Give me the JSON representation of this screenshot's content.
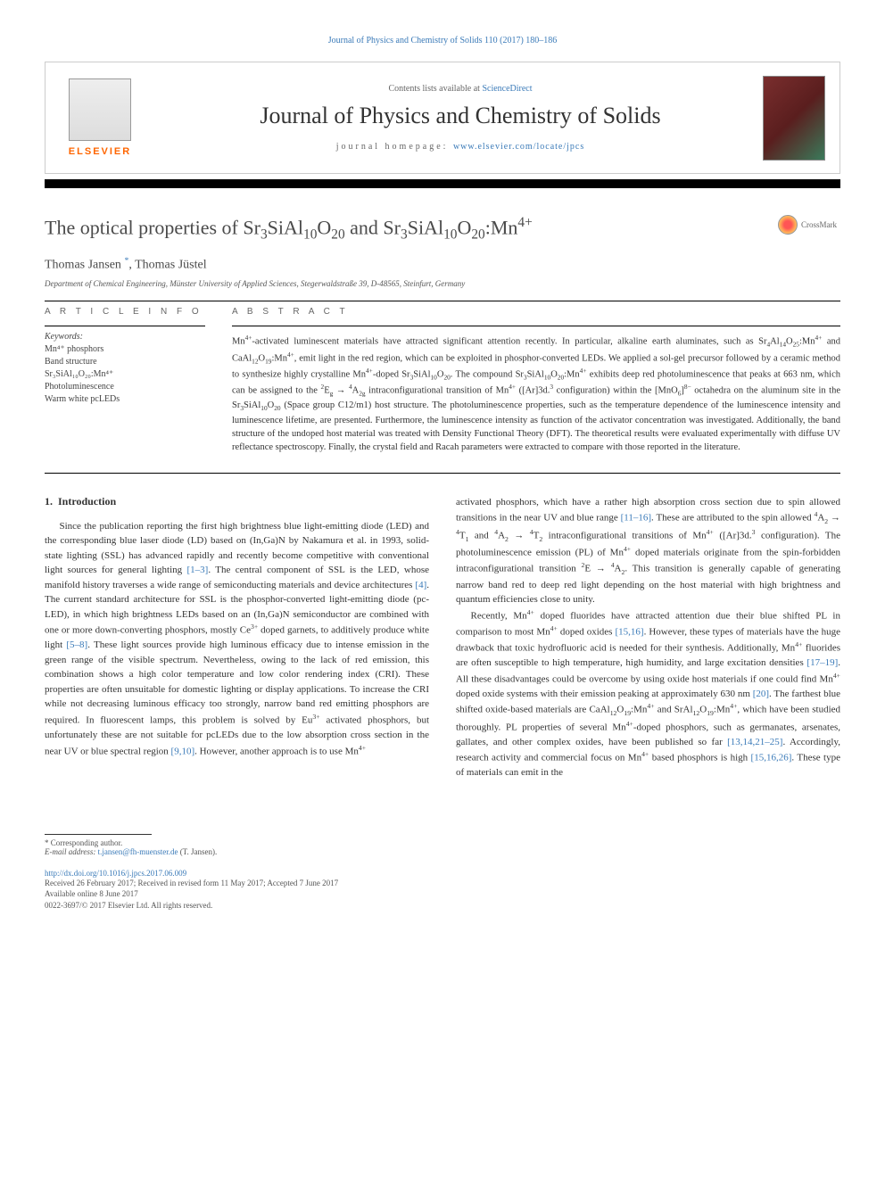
{
  "top_link": {
    "text": "Journal of Physics and Chemistry of Solids 110 (2017) 180–186",
    "color": "#3a7ab8"
  },
  "header": {
    "elsevier_label": "ELSEVIER",
    "elsevier_color": "#ff6600",
    "contents_prefix": "Contents lists available at ",
    "contents_link": "ScienceDirect",
    "journal_name": "Journal of Physics and Chemistry of Solids",
    "homepage_prefix": "journal homepage: ",
    "homepage_link": "www.elsevier.com/locate/jpcs"
  },
  "crossmark": {
    "label": "CrossMark"
  },
  "article": {
    "title_html": "The optical properties of Sr<sub>3</sub>SiAl<sub>10</sub>O<sub>20</sub> and Sr<sub>3</sub>SiAl<sub>10</sub>O<sub>20</sub>:Mn<sup>4+</sup>",
    "authors_html": "Thomas Jansen <sup class=\"corr-star\">*</sup>, Thomas Jüstel",
    "affiliation": "Department of Chemical Engineering, Münster University of Applied Sciences, Stegerwaldstraße 39, D-48565, Steinfurt, Germany"
  },
  "article_info": {
    "heading": "A R T I C L E  I N F O",
    "keywords_label": "Keywords:",
    "keywords": [
      "Mn⁴⁺ phosphors",
      "Band structure",
      "Sr₃SiAl₁₀O₂₀:Mn⁴⁺",
      "Photoluminescence",
      "Warm white pcLEDs"
    ]
  },
  "abstract": {
    "heading": "A B S T R A C T",
    "text_html": "Mn<sup>4+</sup>-activated luminescent materials have attracted significant attention recently. In particular, alkaline earth aluminates, such as Sr<sub>4</sub>Al<sub>14</sub>O<sub>25</sub>:Mn<sup>4+</sup> and CaAl<sub>12</sub>O<sub>19</sub>:Mn<sup>4+</sup>, emit light in the red region, which can be exploited in phosphor-converted LEDs. We applied a sol-gel precursor followed by a ceramic method to synthesize highly crystalline Mn<sup>4+</sup>-doped Sr<sub>3</sub>SiAl<sub>10</sub>O<sub>20</sub>. The compound Sr<sub>3</sub>SiAl<sub>10</sub>O<sub>20</sub>:Mn<sup>4+</sup> exhibits deep red photoluminescence that peaks at 663 nm, which can be assigned to the <sup>2</sup>E<sub>g</sub> → <sup>4</sup>A<sub>2g</sub> intraconfigurational transition of Mn<sup>4+</sup> ([Ar]3d.<sup>3</sup> configuration) within the [MnO<sub>6</sub>]<sup>8−</sup> octahedra on the aluminum site in the Sr<sub>3</sub>SiAl<sub>10</sub>O<sub>20</sub> (Space group C12/m1) host structure. The photoluminescence properties, such as the temperature dependence of the luminescence intensity and luminescence lifetime, are presented. Furthermore, the luminescence intensity as function of the activator concentration was investigated. Additionally, the band structure of the undoped host material was treated with Density Functional Theory (DFT). The theoretical results were evaluated experimentally with diffuse UV reflectance spectroscopy. Finally, the crystal field and Racah parameters were extracted to compare with those reported in the literature."
  },
  "body": {
    "section_number": "1.",
    "section_title": "Introduction",
    "col1_p1_html": "Since the publication reporting the first high brightness blue light-emitting diode (LED) and the corresponding blue laser diode (LD) based on (In,Ga)N by Nakamura et al. in 1993, solid-state lighting (SSL) has advanced rapidly and recently become competitive with conventional light sources for general lighting <span class=\"cite\">[1–3]</span>. The central component of SSL is the LED, whose manifold history traverses a wide range of semiconducting materials and device architectures <span class=\"cite\">[4]</span>. The current standard architecture for SSL is the phosphor-converted light-emitting diode (pc-LED), in which high brightness LEDs based on an (In,Ga)N semiconductor are combined with one or more down-converting phosphors, mostly Ce<sup>3+</sup> doped garnets, to additively produce white light <span class=\"cite\">[5–8]</span>. These light sources provide high luminous efficacy due to intense emission in the green range of the visible spectrum. Nevertheless, owing to the lack of red emission, this combination shows a high color temperature and low color rendering index (CRI). These properties are often unsuitable for domestic lighting or display applications. To increase the CRI while not decreasing luminous efficacy too strongly, narrow band red emitting phosphors are required. In fluorescent lamps, this problem is solved by Eu<sup>3+</sup> activated phosphors, but unfortunately these are not suitable for pcLEDs due to the low absorption cross section in the near UV or blue spectral region <span class=\"cite\">[9,10]</span>. However, another approach is to use Mn<sup>4+</sup>",
    "col2_p1_html": "activated phosphors, which have a rather high absorption cross section due to spin allowed transitions in the near UV and blue range <span class=\"cite\">[11–16]</span>. These are attributed to the spin allowed <sup>4</sup>A<sub>2</sub> → <sup>4</sup>T<sub>1</sub> and <sup>4</sup>A<sub>2</sub> → <sup>4</sup>T<sub>2</sub> intraconfigurational transitions of Mn<sup>4+</sup> ([Ar]3d.<sup>3</sup> configuration). The photoluminescence emission (PL) of Mn<sup>4+</sup> doped materials originate from the spin-forbidden intraconfigurational transition <sup>2</sup>E → <sup>4</sup>A<sub>2</sub>. This transition is generally capable of generating narrow band red to deep red light depending on the host material with high brightness and quantum efficiencies close to unity.",
    "col2_p2_html": "Recently, Mn<sup>4+</sup> doped fluorides have attracted attention due their blue shifted PL in comparison to most Mn<sup>4+</sup> doped oxides <span class=\"cite\">[15,16]</span>. However, these types of materials have the huge drawback that toxic hydrofluoric acid is needed for their synthesis. Additionally, Mn<sup>4+</sup> fluorides are often susceptible to high temperature, high humidity, and large excitation densities <span class=\"cite\">[17–19]</span>. All these disadvantages could be overcome by using oxide host materials if one could find Mn<sup>4+</sup> doped oxide systems with their emission peaking at approximately 630 nm <span class=\"cite\">[20]</span>. The farthest blue shifted oxide-based materials are CaAl<sub>12</sub>O<sub>19</sub>:Mn<sup>4+</sup> and SrAl<sub>12</sub>O<sub>19</sub>:Mn<sup>4+</sup>, which have been studied thoroughly. PL properties of several Mn<sup>4+</sup>-doped phosphors, such as germanates, arsenates, gallates, and other complex oxides, have been published so far <span class=\"cite\">[13,14,21–25]</span>. Accordingly, research activity and commercial focus on Mn<sup>4+</sup> based phosphors is high <span class=\"cite\">[15,16,26]</span>. These type of materials can emit in the"
  },
  "footnotes": {
    "corr": "* Corresponding author.",
    "email_label": "E-mail address: ",
    "email": "t.jansen@fh-muenster.de",
    "email_suffix": " (T. Jansen).",
    "doi": "http://dx.doi.org/10.1016/j.jpcs.2017.06.009",
    "received": "Received 26 February 2017; Received in revised form 11 May 2017; Accepted 7 June 2017",
    "available": "Available online 8 June 2017",
    "copyright": "0022-3697/© 2017 Elsevier Ltd. All rights reserved."
  },
  "colors": {
    "link": "#3a7ab8",
    "text": "#333333",
    "elsevier": "#ff6600",
    "rule": "#000000"
  },
  "typography": {
    "title_fontsize": 22,
    "journal_fontsize": 26,
    "body_fontsize": 11,
    "abstract_fontsize": 10.5,
    "footnote_fontsize": 9
  }
}
